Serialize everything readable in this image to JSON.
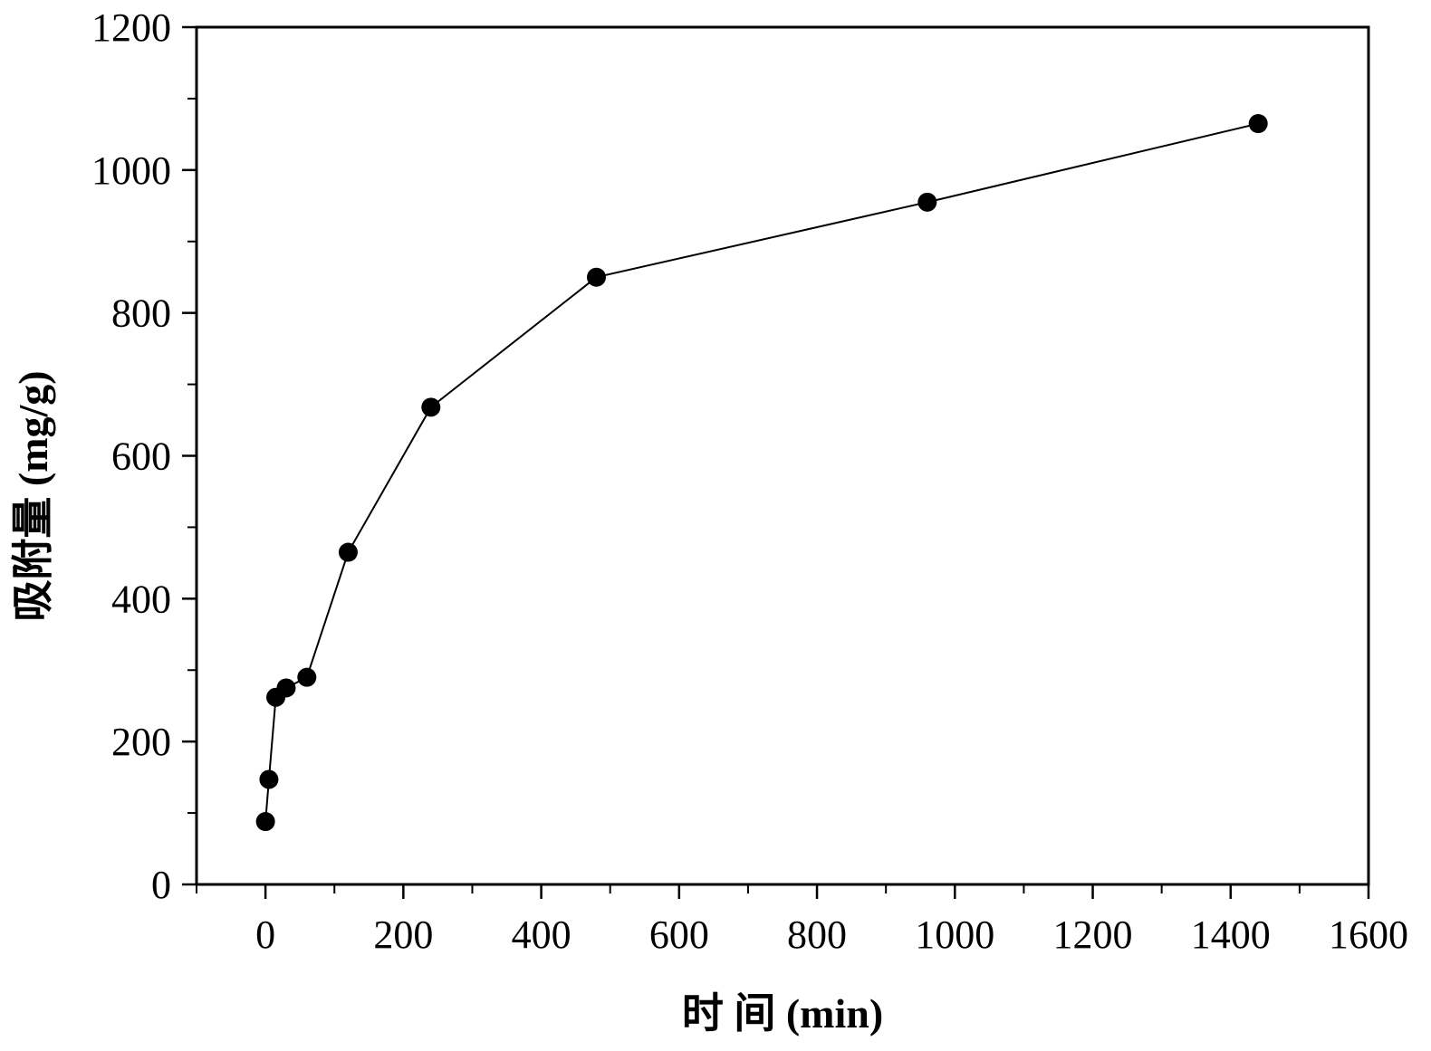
{
  "chart_data": {
    "type": "line",
    "xlabel": "时 间 (min)",
    "ylabel": "吸附量 (mg/g)",
    "xlim": [
      -100,
      1600
    ],
    "ylim": [
      0,
      1200
    ],
    "x_ticks": [
      0,
      200,
      400,
      600,
      800,
      1000,
      1200,
      1400,
      1600
    ],
    "y_ticks": [
      0,
      200,
      400,
      600,
      800,
      1000,
      1200
    ],
    "grid": false,
    "legend": "none",
    "marker": "filled-circle",
    "colors": {
      "line": "#000000",
      "marker": "#000000"
    },
    "series": [
      {
        "x": [
          0,
          5,
          15,
          30,
          60,
          120,
          240,
          480,
          960,
          1440
        ],
        "y": [
          88,
          147,
          262,
          275,
          290,
          465,
          668,
          850,
          955,
          1065
        ]
      }
    ]
  }
}
